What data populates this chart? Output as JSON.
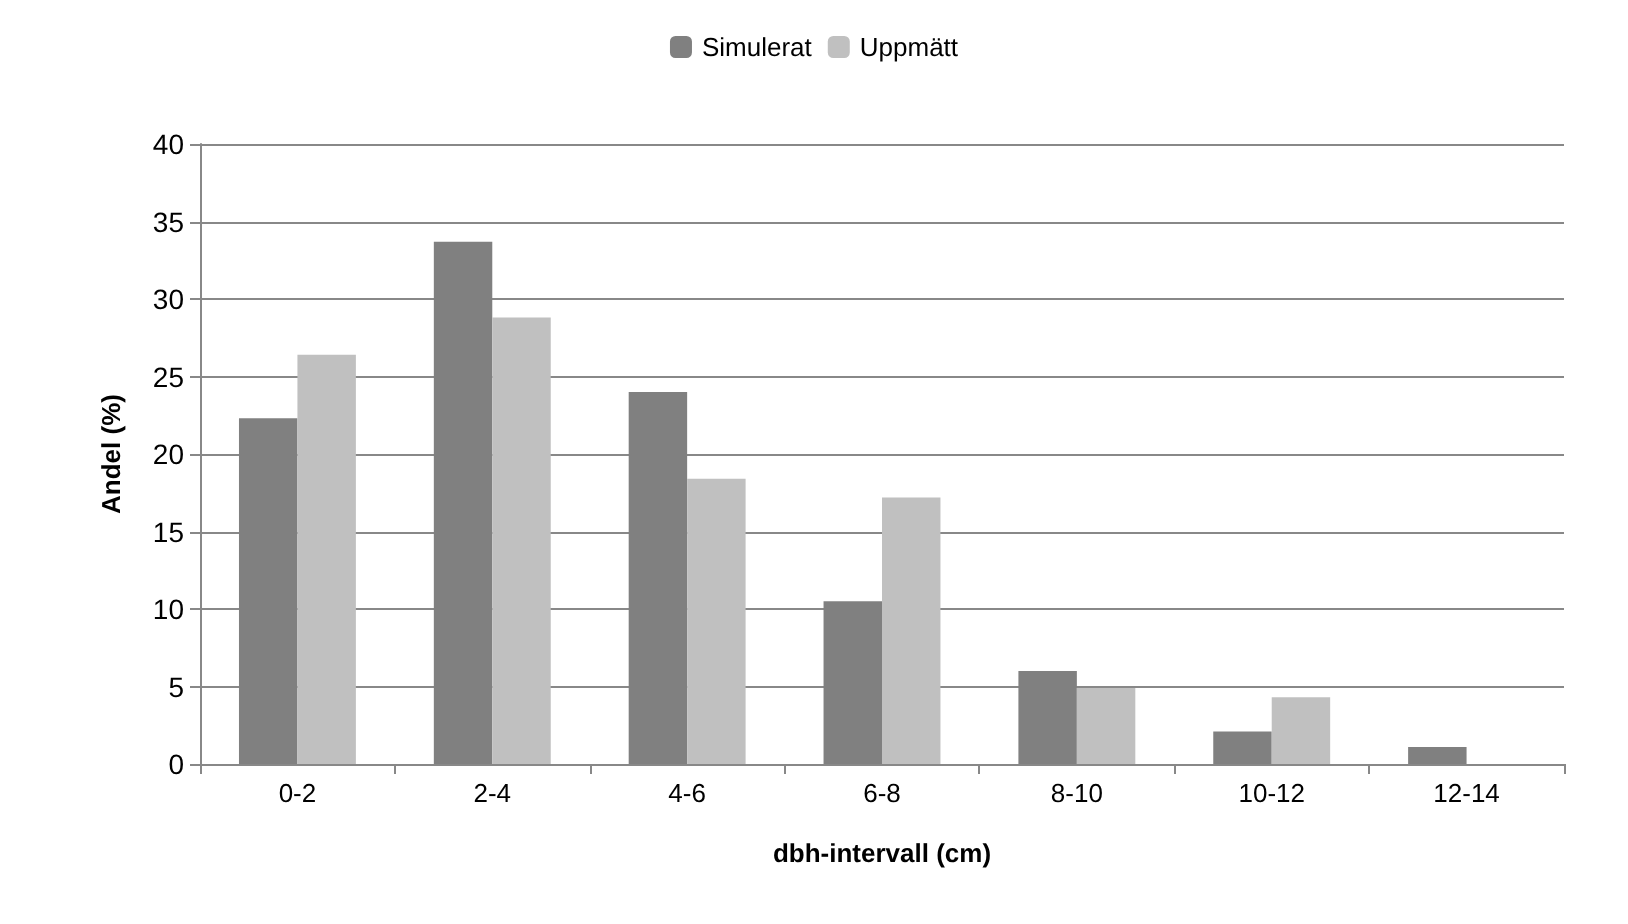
{
  "chart_data": {
    "type": "bar",
    "xlabel": "dbh-intervall (cm)",
    "ylabel": "Andel (%)",
    "categories": [
      "0-2",
      "2-4",
      "4-6",
      "6-8",
      "8-10",
      "10-12",
      "12-14"
    ],
    "series": [
      {
        "name": "Simulerat",
        "color": "#808080",
        "values": [
          22.3,
          33.7,
          24.0,
          10.5,
          6.0,
          2.1,
          1.1
        ]
      },
      {
        "name": "Uppmätt",
        "color": "#c0c0c0",
        "values": [
          26.4,
          28.8,
          18.4,
          17.2,
          4.9,
          4.3,
          null
        ]
      }
    ],
    "ylim": [
      0,
      40
    ],
    "yticks": [
      0,
      5,
      10,
      15,
      20,
      25,
      30,
      35,
      40
    ],
    "grid": "y",
    "legend": "top"
  }
}
